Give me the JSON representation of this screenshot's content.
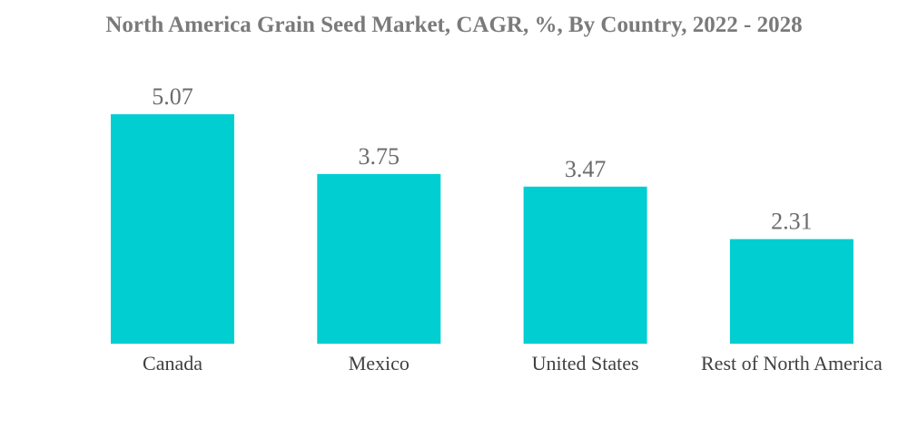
{
  "chart_data": {
    "type": "bar",
    "title": "North America Grain Seed Market, CAGR, %, By Country, 2022 - 2028",
    "categories": [
      "Canada",
      "Mexico",
      "United States",
      "Rest of North America"
    ],
    "values": [
      5.07,
      3.75,
      3.47,
      2.31
    ],
    "xlabel": "",
    "ylabel": "",
    "ylim": [
      0,
      5.07
    ],
    "grid": false,
    "legend": "none",
    "bar_color": "#00CED1"
  }
}
